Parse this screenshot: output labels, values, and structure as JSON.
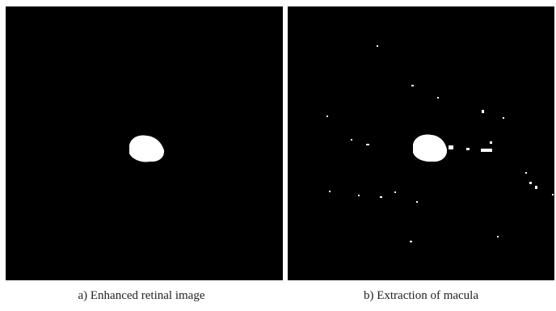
{
  "figure": {
    "panels": [
      {
        "caption": "a) Enhanced retinal image"
      },
      {
        "caption": "b) Extraction of macula"
      }
    ]
  }
}
